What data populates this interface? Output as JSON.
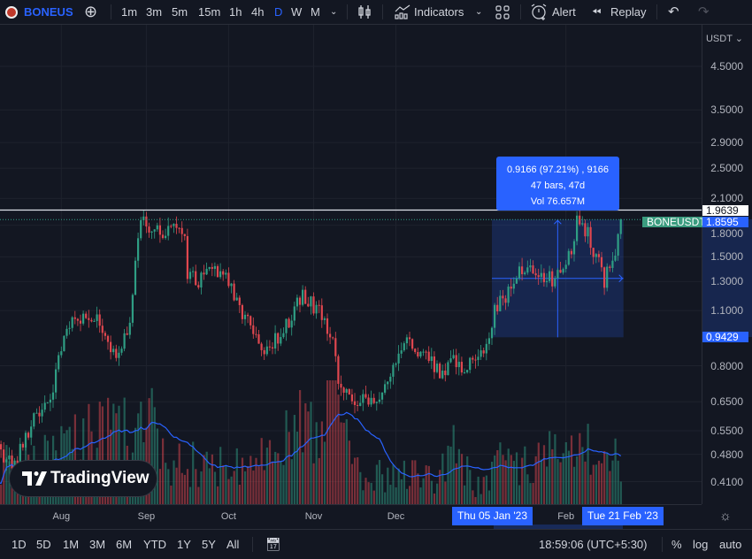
{
  "toolbar": {
    "symbol": "BONEUS",
    "intervals": [
      "1m",
      "3m",
      "5m",
      "15m",
      "1h",
      "4h",
      "D",
      "W",
      "M"
    ],
    "active_interval": "D",
    "indicators_label": "Indicators",
    "alert_label": "Alert",
    "replay_label": "Replay"
  },
  "price_axis": {
    "currency": "USDT",
    "ticks": [
      4.5,
      3.5,
      2.9,
      2.5,
      2.1,
      1.8,
      1.5,
      1.3,
      1.1,
      0.8,
      0.65,
      0.55,
      0.48,
      0.41
    ],
    "tick_labels": [
      "4.5000",
      "3.5000",
      "2.9000",
      "2.5000",
      "2.1000",
      "1.8000",
      "1.5000",
      "1.3000",
      "1.1000",
      "0.8000",
      "0.6500",
      "0.5500",
      "0.4800",
      "0.4100"
    ],
    "scale": "log",
    "crosshair_price": "1.9639",
    "last_price": "1.8595",
    "symbol_label": "BONEUSDT",
    "range_low_price": "0.9429"
  },
  "measure": {
    "line1": "0.9166 (97.21%) , 9166",
    "line2": "47 bars, 47d",
    "line3": "Vol 76.657M",
    "start_date": "Thu 05 Jan '23",
    "end_date": "Tue 21 Feb '23"
  },
  "time_axis": {
    "labels": [
      [
        "Aug",
        "2022-08-01"
      ],
      [
        "Sep",
        "2022-09-01"
      ],
      [
        "Oct",
        "2022-10-01"
      ],
      [
        "Nov",
        "2022-11-01"
      ],
      [
        "Dec",
        "2022-12-01"
      ],
      [
        "Feb",
        "2023-02-01"
      ]
    ]
  },
  "watermark": "TradingView",
  "colors": {
    "up": "#2f9e84",
    "down": "#e0474f",
    "accent": "#2962ff",
    "background": "#131722",
    "volume_ma": "#2962ff"
  },
  "bottombar": {
    "ranges": [
      "1D",
      "5D",
      "1M",
      "3M",
      "6M",
      "YTD",
      "1Y",
      "5Y",
      "All"
    ],
    "clock": "18:59:06 (UTC+5:30)",
    "percent": "%",
    "log": "log",
    "auto": "auto"
  },
  "chart_data": {
    "type": "candlestick",
    "interval": "1D",
    "y_scale": "log",
    "ylim": [
      0.39,
      5.0
    ],
    "close_path": [
      [
        "2022-07-09",
        0.49
      ],
      [
        "2022-07-15",
        0.45
      ],
      [
        "2022-07-22",
        0.6
      ],
      [
        "2022-07-28",
        0.66
      ],
      [
        "2022-08-02",
        0.95
      ],
      [
        "2022-08-05",
        1.05
      ],
      [
        "2022-08-10",
        1.03
      ],
      [
        "2022-08-15",
        1.05
      ],
      [
        "2022-08-18",
        0.9
      ],
      [
        "2022-08-22",
        0.86
      ],
      [
        "2022-08-26",
        1.05
      ],
      [
        "2022-08-28",
        1.5
      ],
      [
        "2022-08-30",
        1.84
      ],
      [
        "2022-09-02",
        1.8
      ],
      [
        "2022-09-05",
        1.75
      ],
      [
        "2022-09-08",
        1.71
      ],
      [
        "2022-09-12",
        1.84
      ],
      [
        "2022-09-15",
        1.62
      ],
      [
        "2022-09-16",
        1.36
      ],
      [
        "2022-09-20",
        1.29
      ],
      [
        "2022-09-23",
        1.43
      ],
      [
        "2022-09-26",
        1.39
      ],
      [
        "2022-10-01",
        1.29
      ],
      [
        "2022-10-04",
        1.16
      ],
      [
        "2022-10-09",
        1.0
      ],
      [
        "2022-10-12",
        0.88
      ],
      [
        "2022-10-15",
        0.9
      ],
      [
        "2022-10-20",
        0.95
      ],
      [
        "2022-10-25",
        1.11
      ],
      [
        "2022-10-28",
        1.19
      ],
      [
        "2022-11-01",
        1.13
      ],
      [
        "2022-11-05",
        1.05
      ],
      [
        "2022-11-09",
        0.86
      ],
      [
        "2022-11-10",
        0.7
      ],
      [
        "2022-11-15",
        0.66
      ],
      [
        "2022-11-20",
        0.66
      ],
      [
        "2022-11-23",
        0.65
      ],
      [
        "2022-11-28",
        0.74
      ],
      [
        "2022-12-03",
        0.9
      ],
      [
        "2022-12-06",
        0.925
      ],
      [
        "2022-12-09",
        0.86
      ],
      [
        "2022-12-14",
        0.815
      ],
      [
        "2022-12-17",
        0.755
      ],
      [
        "2022-12-22",
        0.815
      ],
      [
        "2022-12-27",
        0.79
      ],
      [
        "2022-12-30",
        0.86
      ],
      [
        "2023-01-03",
        0.9
      ],
      [
        "2023-01-06",
        1.11
      ],
      [
        "2023-01-10",
        1.19
      ],
      [
        "2023-01-15",
        1.36
      ],
      [
        "2023-01-19",
        1.43
      ],
      [
        "2023-01-23",
        1.32
      ],
      [
        "2023-01-28",
        1.32
      ],
      [
        "2023-01-31",
        1.36
      ],
      [
        "2023-02-03",
        1.58
      ],
      [
        "2023-02-05",
        1.84
      ],
      [
        "2023-02-09",
        1.73
      ],
      [
        "2023-02-11",
        1.54
      ],
      [
        "2023-02-13",
        1.47
      ],
      [
        "2023-02-15",
        1.29
      ],
      [
        "2023-02-17",
        1.47
      ],
      [
        "2023-02-19",
        1.54
      ],
      [
        "2023-02-21",
        1.8595
      ]
    ],
    "volume_path_m": [
      [
        "2022-07-09",
        1.6
      ],
      [
        "2022-08-02",
        2.5
      ],
      [
        "2022-08-28",
        3.5
      ],
      [
        "2022-09-01",
        5.0
      ],
      [
        "2022-09-10",
        2.0
      ],
      [
        "2022-10-10",
        1.6
      ],
      [
        "2022-11-09",
        4.5
      ],
      [
        "2022-11-15",
        1.4
      ],
      [
        "2022-12-15",
        1.2
      ],
      [
        "2022-12-22",
        2.5
      ],
      [
        "2022-12-30",
        0.8
      ],
      [
        "2023-01-06",
        1.8
      ],
      [
        "2023-02-05",
        2.5
      ],
      [
        "2023-02-21",
        1.8
      ]
    ],
    "volume_ma_length": 20,
    "horizontal_line": 1.9639,
    "measure_range": {
      "from_date": "2023-01-05",
      "to_date": "2023-02-21",
      "low": 0.9429,
      "high": 1.8595
    }
  }
}
